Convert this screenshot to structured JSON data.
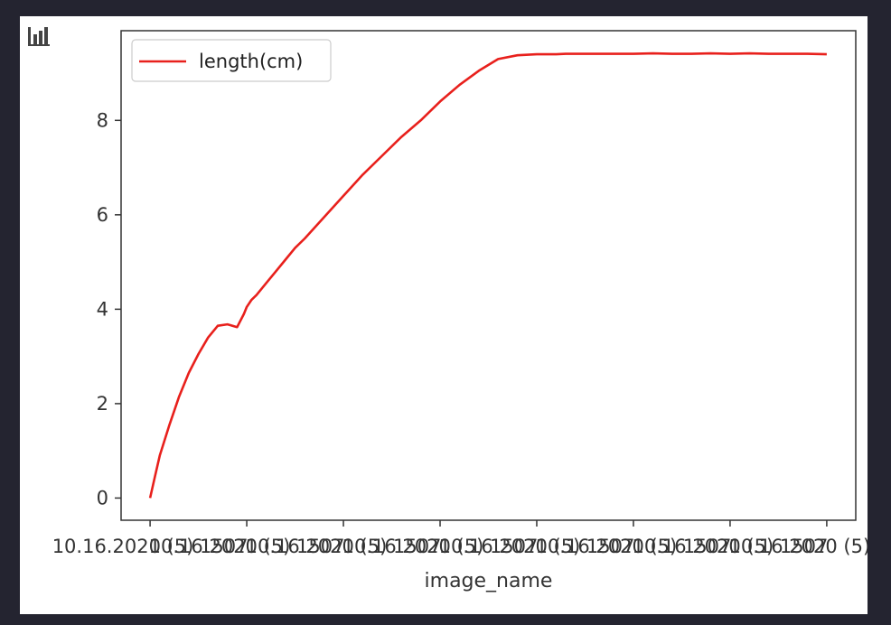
{
  "toolbar": {
    "icon": "bar-chart-icon"
  },
  "chart_data": {
    "type": "line",
    "title": "",
    "xlabel": "image_name",
    "ylabel": "",
    "x_tick_labels": [
      "10.16.2020 (5) 1507",
      "10.16.2020 (5) 1507",
      "10.16.2020 (5) 1507",
      "10.16.2020 (5) 1507",
      "10.16.2020 (5) 1507",
      "10.16.2020 (5) 1507",
      "10.16.2020 (5) 1507",
      "10.16.2020 (5) 1507"
    ],
    "y_ticks": [
      0,
      2,
      4,
      6,
      8
    ],
    "ylim": [
      -0.47,
      9.9
    ],
    "grid": false,
    "legend_position": "top-left",
    "series": [
      {
        "name": "length(cm)",
        "color": "#e8201c",
        "x": [
          0,
          0.05,
          0.1,
          0.2,
          0.3,
          0.4,
          0.5,
          0.6,
          0.7,
          0.8,
          0.9,
          0.97,
          1.0,
          1.05,
          1.1,
          1.2,
          1.3,
          1.4,
          1.5,
          1.6,
          1.8,
          2.0,
          2.2,
          2.4,
          2.6,
          2.8,
          3.0,
          3.2,
          3.4,
          3.6,
          3.8,
          4.0,
          4.2,
          4.3,
          4.35,
          4.4,
          4.5,
          4.6,
          4.8,
          5.0,
          5.2,
          5.4,
          5.6,
          5.8,
          6.0,
          6.2,
          6.4,
          6.6,
          6.8,
          7.0
        ],
        "y": [
          0.0,
          0.45,
          0.9,
          1.55,
          2.15,
          2.65,
          3.05,
          3.4,
          3.65,
          3.68,
          3.62,
          3.9,
          4.05,
          4.2,
          4.3,
          4.55,
          4.8,
          5.05,
          5.3,
          5.5,
          5.95,
          6.4,
          6.85,
          7.25,
          7.65,
          8.0,
          8.4,
          8.75,
          9.05,
          9.3,
          9.38,
          9.4,
          9.4,
          9.41,
          9.41,
          9.41,
          9.41,
          9.41,
          9.41,
          9.41,
          9.42,
          9.41,
          9.41,
          9.42,
          9.41,
          9.42,
          9.41,
          9.41,
          9.41,
          9.4
        ]
      }
    ]
  }
}
